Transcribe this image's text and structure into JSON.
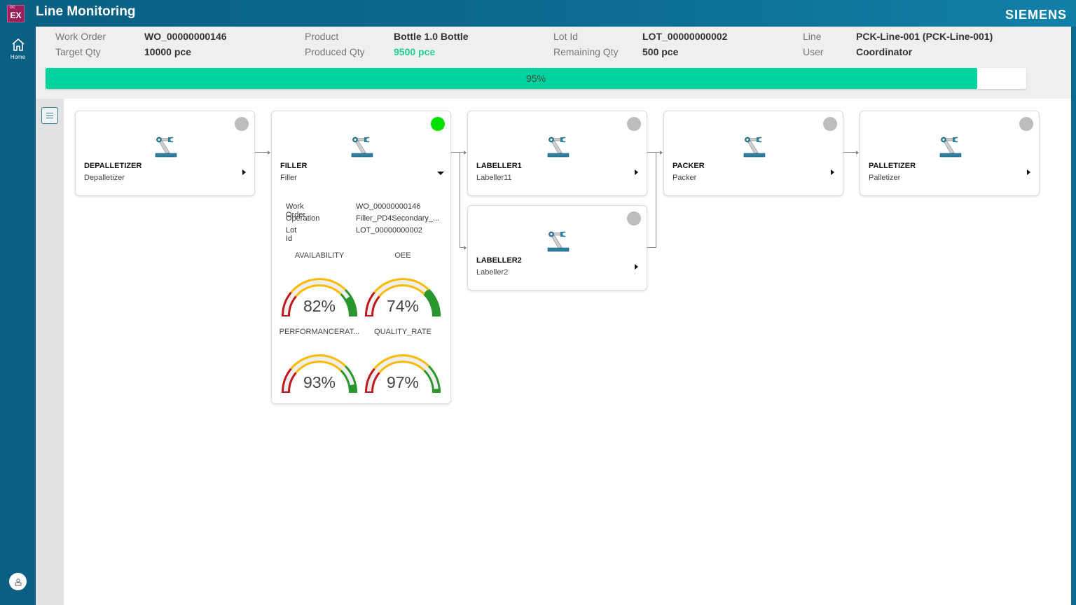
{
  "header": {
    "app_logo": "EX",
    "app_logo_small": "OC",
    "title": "Line Monitoring",
    "brand": "SIEMENS"
  },
  "nav": {
    "home_label": "Home",
    "home_icon": "home-icon",
    "user_icon": "user-icon"
  },
  "info": {
    "work_order_label": "Work Order",
    "work_order": "WO_00000000146",
    "target_qty_label": "Target Qty",
    "target_qty": "10000 pce",
    "product_label": "Product",
    "product": "Bottle 1.0 Bottle",
    "produced_qty_label": "Produced Qty",
    "produced_qty": "9500 pce",
    "lot_id_label": "Lot Id",
    "lot_id": "LOT_00000000002",
    "remaining_qty_label": "Remaining Qty",
    "remaining_qty": "500 pce",
    "line_label": "Line",
    "line": "PCK-Line-001 (PCK-Line-001)",
    "user_label": "User",
    "user": "Coordinator",
    "progress_percent": 95,
    "progress_text": "95%",
    "colors": {
      "progress": "#00d39e",
      "produced": "#1fcf94"
    }
  },
  "machines": [
    {
      "id": "DEPALLETIZER",
      "name": "Depalletizer",
      "status": "idle",
      "status_color": "#bdbdbd",
      "expanded": false
    },
    {
      "id": "FILLER",
      "name": "Filler",
      "status": "running",
      "status_color": "#00e000",
      "expanded": true
    },
    {
      "id": "LABELLER1",
      "name": "Labeller11",
      "status": "idle",
      "status_color": "#bdbdbd",
      "expanded": false
    },
    {
      "id": "LABELLER2",
      "name": "Labeller2",
      "status": "idle",
      "status_color": "#bdbdbd",
      "expanded": false
    },
    {
      "id": "PACKER",
      "name": "Packer",
      "status": "idle",
      "status_color": "#bdbdbd",
      "expanded": false
    },
    {
      "id": "PALLETIZER",
      "name": "Palletizer",
      "status": "idle",
      "status_color": "#bdbdbd",
      "expanded": false
    }
  ],
  "filler_details": {
    "rows": [
      {
        "label": "Work Order",
        "value": "WO_00000000146"
      },
      {
        "label": "Operation",
        "value": "Filler_PD4Secondary_..."
      },
      {
        "label": "Lot Id",
        "value": "LOT_00000000002"
      }
    ],
    "gauges": [
      {
        "title": "AVAILABILITY",
        "value": 82,
        "text": "82%"
      },
      {
        "title": "OEE",
        "value": 74,
        "text": "74%"
      },
      {
        "title": "PERFORMANCERAT...",
        "value": 93,
        "text": "93%"
      },
      {
        "title": "QUALITY_RATE",
        "value": 97,
        "text": "97%"
      }
    ],
    "gauge_zones": {
      "red_end": 22,
      "yellow_end": 75,
      "colors": {
        "red": "#c0161c",
        "yellow": "#f8bb00",
        "green": "#2a962e",
        "track": "#efefef"
      }
    }
  }
}
